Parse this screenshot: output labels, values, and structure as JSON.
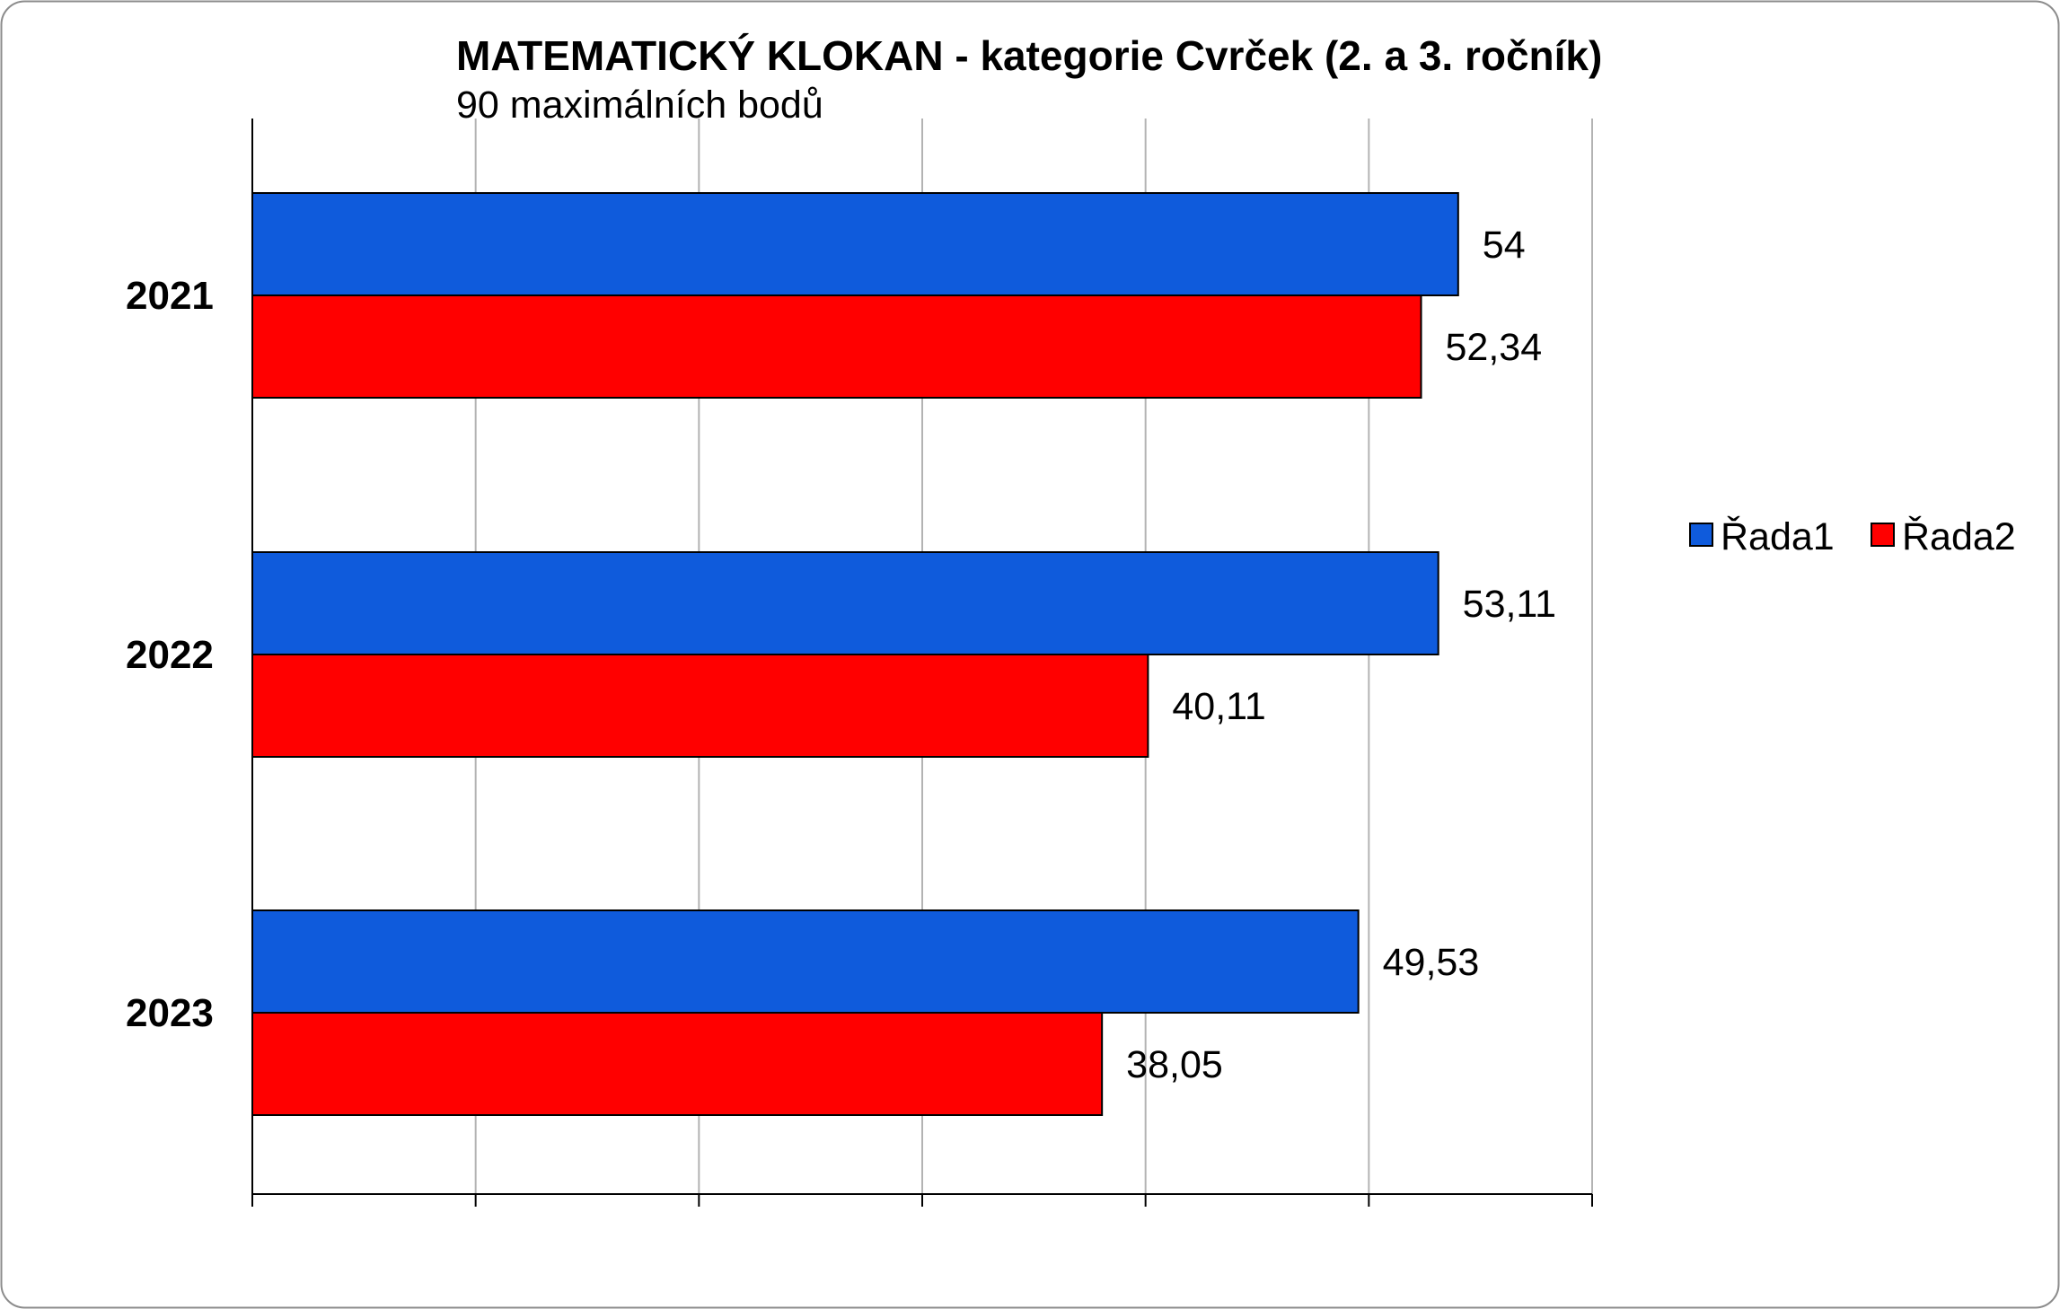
{
  "chart_data": {
    "type": "bar",
    "orientation": "horizontal",
    "title": "MATEMATICKÝ KLOKAN - kategorie Cvrček (2. a 3. ročník)",
    "subtitle": "90 maximálních bodů",
    "categories": [
      "2021",
      "2022",
      "2023"
    ],
    "series": [
      {
        "name": "Řada1",
        "color": "#0f5bdc",
        "values": [
          54,
          53.11,
          49.53
        ],
        "labels": [
          "54",
          "53,11",
          "49,53"
        ]
      },
      {
        "name": "Řada2",
        "color": "#ff0000",
        "values": [
          52.34,
          40.11,
          38.05
        ],
        "labels": [
          "52,34",
          "40,11",
          "38,05"
        ]
      }
    ],
    "xlim": [
      0,
      60
    ],
    "x_grid_step": 10,
    "grid": true,
    "legend_position": "right"
  }
}
